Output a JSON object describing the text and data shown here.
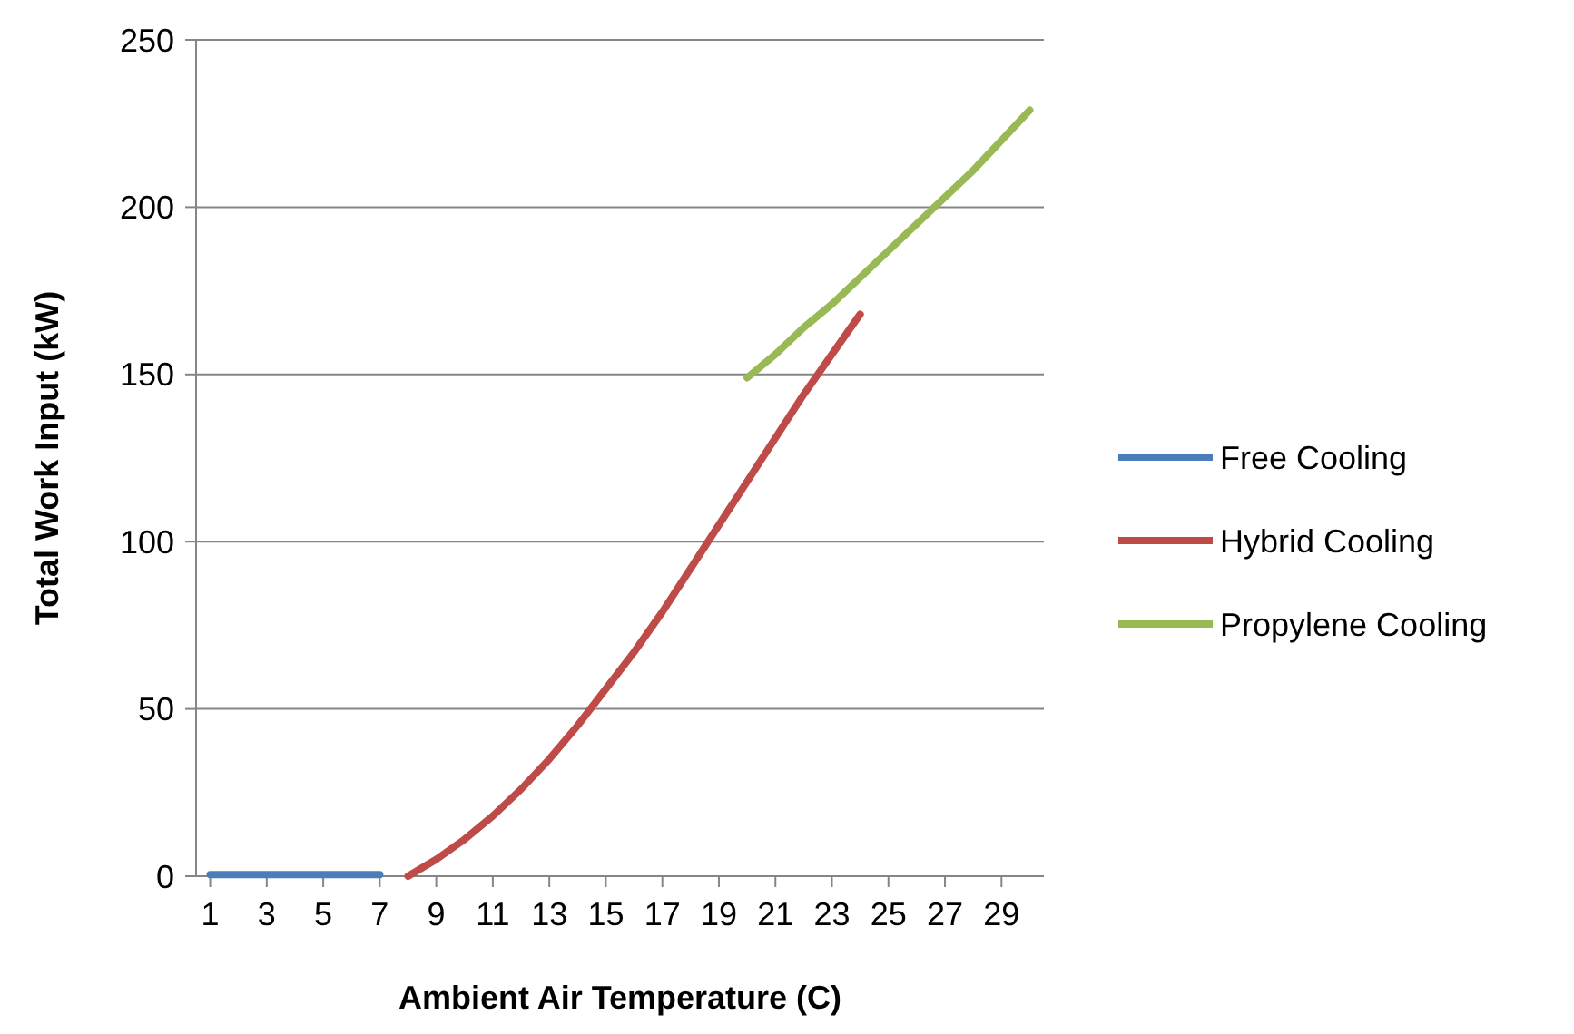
{
  "chart_data": {
    "type": "line",
    "xlabel": "Ambient Air Temperature (C)",
    "ylabel": "Total Work Input (kW)",
    "xlim": [
      0.5,
      30.5
    ],
    "xticks": [
      1,
      3,
      5,
      7,
      9,
      11,
      13,
      15,
      17,
      19,
      21,
      23,
      25,
      27,
      29
    ],
    "ylim": [
      0,
      250
    ],
    "yticks": [
      0,
      50,
      100,
      150,
      200,
      250
    ],
    "grid": "y",
    "legend": "right",
    "marker": "none",
    "line_style": "solid",
    "series": [
      {
        "name": "Free Cooling",
        "color": "#4a7ebb",
        "x": [
          1,
          2,
          3,
          4,
          5,
          6,
          7
        ],
        "values": [
          0.5,
          0.5,
          0.5,
          0.5,
          0.5,
          0.5,
          0.5
        ]
      },
      {
        "name": "Hybrid Cooling",
        "color": "#be4b48",
        "x": [
          8,
          9,
          10,
          11,
          12,
          13,
          14,
          15,
          16,
          17,
          18,
          19,
          20,
          21,
          22,
          23,
          24
        ],
        "values": [
          0,
          5,
          11,
          18,
          26,
          35,
          45,
          56,
          67,
          79,
          92,
          105,
          118,
          131,
          144,
          156,
          168
        ]
      },
      {
        "name": "Propylene Cooling",
        "color": "#98b954",
        "x": [
          20,
          21,
          22,
          23,
          24,
          25,
          26,
          27,
          28,
          29,
          30
        ],
        "values": [
          149,
          156,
          164,
          171,
          179,
          187,
          195,
          203,
          211,
          220,
          229
        ]
      }
    ]
  }
}
